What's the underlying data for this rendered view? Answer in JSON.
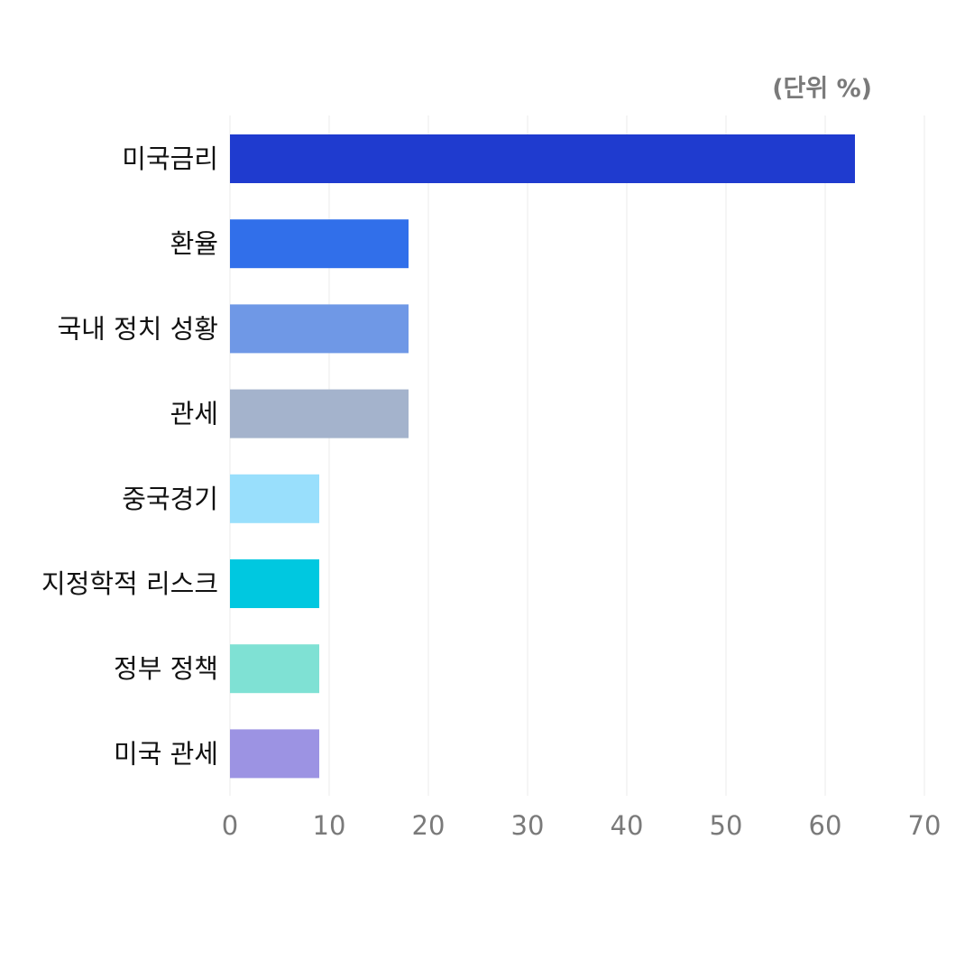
{
  "chart_data": {
    "type": "bar",
    "orientation": "horizontal",
    "unit_note": "(단위 %)",
    "categories": [
      "미국금리",
      "환율",
      "국내 정치 성황",
      "관세",
      "중국경기",
      "지정학적 리스크",
      "정부 정책",
      "미국 관세"
    ],
    "values": [
      63,
      18,
      18,
      18,
      9,
      9,
      9,
      9
    ],
    "bar_colors": [
      "#1f3bcf",
      "#316fea",
      "#6f98e6",
      "#a4b3cc",
      "#99dffc",
      "#00c8e0",
      "#7fe1d4",
      "#9c93e3"
    ],
    "xlim": [
      0,
      70
    ],
    "xticks": [
      0,
      10,
      20,
      30,
      40,
      50,
      60,
      70
    ],
    "grid": true,
    "legend": "none"
  }
}
